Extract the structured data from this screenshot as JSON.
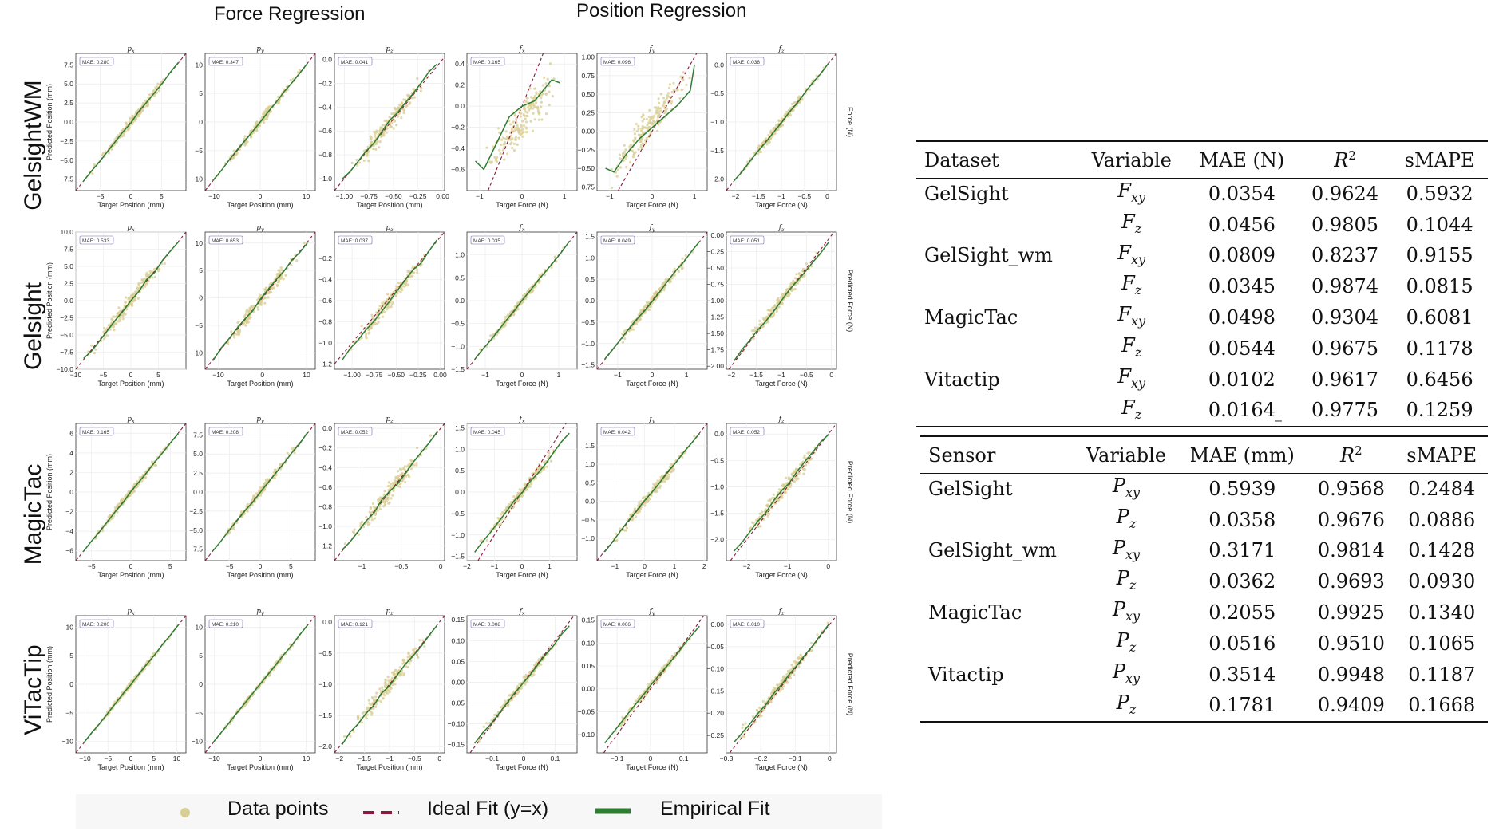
{
  "headers": {
    "force_regression": "Force Regression",
    "position_regression": "Position Regression"
  },
  "row_labels": [
    "GelsightWM",
    "Gelsight",
    "MagicTac",
    "ViTacTip"
  ],
  "legend": {
    "data_points": "Data points",
    "ideal_fit": "Ideal Fit (y=x)",
    "empirical_fit": "Empirical Fit"
  },
  "colors": {
    "points": "#d9cf96",
    "ideal": "#8b1a3c",
    "empirical": "#2e7d32",
    "mae_box": "#6b6bb3"
  },
  "chart_data": [
    {
      "type": "scatter",
      "row": 0,
      "col": 0,
      "title": "p_x",
      "mae": "MAE: 0.280",
      "xlabel": "Target Position (mm)",
      "ylabel": "Predicted Position (mm)",
      "xlim": [
        -9,
        9
      ],
      "ylim": [
        -9,
        9
      ],
      "xticks": [
        -5,
        0,
        5
      ],
      "yticks": [
        -7.5,
        -5.0,
        -2.5,
        0.0,
        2.5,
        5.0,
        7.5
      ],
      "spread": 0.06
    },
    {
      "type": "scatter",
      "row": 0,
      "col": 1,
      "title": "p_y",
      "mae": "MAE: 0.347",
      "xlabel": "Target Position (mm)",
      "ylabel": "",
      "xlim": [
        -12,
        12
      ],
      "ylim": [
        -12,
        12
      ],
      "xticks": [
        -10,
        0,
        10
      ],
      "yticks": [
        -10,
        -5,
        0,
        5,
        10
      ],
      "spread": 0.06
    },
    {
      "type": "scatter",
      "row": 0,
      "col": 2,
      "title": "p_z",
      "mae": "MAE: 0.041",
      "xlabel": "Target Position (mm)",
      "ylabel": "",
      "xlim": [
        -1.1,
        0.02
      ],
      "ylim": [
        -1.1,
        0.05
      ],
      "xticks": [
        -1.0,
        -0.75,
        -0.5,
        -0.25,
        0.0
      ],
      "xtick_labels": [
        "−1.00",
        "−0.75",
        "−0.50",
        "−0.25",
        "0.00"
      ],
      "yticks": [
        -1.0,
        -0.8,
        -0.6,
        -0.4,
        -0.2,
        0.0
      ],
      "spread": 0.12
    },
    {
      "type": "scatter",
      "row": 0,
      "col": 3,
      "title": "f_x",
      "mae": "MAE: 0.165",
      "xlabel": "Target Force (N)",
      "ylabel": "",
      "xlim": [
        -1.3,
        1.3
      ],
      "ylim": [
        -0.8,
        0.5
      ],
      "xticks": [
        -1,
        0,
        1
      ],
      "yticks": [
        -0.6,
        -0.4,
        -0.2,
        0.0,
        0.2,
        0.4
      ],
      "spread": 0.25,
      "fit": [
        [
          -1.1,
          -0.52
        ],
        [
          -0.9,
          -0.6
        ],
        [
          -0.6,
          -0.35
        ],
        [
          -0.3,
          -0.1
        ],
        [
          0,
          0
        ],
        [
          0.3,
          0.05
        ],
        [
          0.5,
          0.15
        ],
        [
          0.7,
          0.25
        ],
        [
          0.9,
          0.22
        ]
      ]
    },
    {
      "type": "scatter",
      "row": 0,
      "col": 4,
      "title": "f_y",
      "mae": "MAE: 0.096",
      "xlabel": "Target Force (N)",
      "ylabel": "",
      "xlim": [
        -1.3,
        1.3
      ],
      "ylim": [
        -0.8,
        1.05
      ],
      "xticks": [
        -1,
        0,
        1
      ],
      "yticks": [
        -0.75,
        -0.5,
        -0.25,
        0.0,
        0.25,
        0.5,
        0.75,
        1.0
      ],
      "spread": 0.2,
      "fit": [
        [
          -1.1,
          -0.5
        ],
        [
          -0.9,
          -0.55
        ],
        [
          -0.6,
          -0.3
        ],
        [
          -0.3,
          -0.1
        ],
        [
          0,
          0.05
        ],
        [
          0.3,
          0.2
        ],
        [
          0.6,
          0.35
        ],
        [
          0.9,
          0.55
        ],
        [
          1.0,
          0.9
        ]
      ]
    },
    {
      "type": "scatter",
      "row": 0,
      "col": 5,
      "title": "f_z",
      "mae": "MAE: 0.038",
      "xlabel": "Target Force (N)",
      "ylabel": "Force (N)",
      "xlim": [
        -2.2,
        0.2
      ],
      "ylim": [
        -2.2,
        0.2
      ],
      "xticks": [
        -2.0,
        -1.5,
        -1.0,
        -0.5,
        0.0
      ],
      "yticks": [
        -2.0,
        -1.5,
        -1.0,
        -0.5,
        0.0
      ],
      "spread": 0.06
    },
    {
      "type": "scatter",
      "row": 1,
      "col": 0,
      "title": "p_x",
      "mae": "MAE: 0.533",
      "xlabel": "Target Position (mm)",
      "ylabel": "Predicted Position (mm)",
      "xlim": [
        -10,
        10
      ],
      "ylim": [
        -10,
        10
      ],
      "xticks": [
        -10,
        -5,
        0,
        5
      ],
      "yticks": [
        -10.0,
        -7.5,
        -5.0,
        -2.5,
        0.0,
        2.5,
        5.0,
        7.5,
        10.0
      ],
      "spread": 0.09
    },
    {
      "type": "scatter",
      "row": 1,
      "col": 1,
      "title": "p_y",
      "mae": "MAE: 0.653",
      "xlabel": "Target Position (mm)",
      "ylabel": "",
      "xlim": [
        -13,
        12
      ],
      "ylim": [
        -13,
        12
      ],
      "xticks": [
        -10,
        0,
        10
      ],
      "yticks": [
        -10,
        -5,
        0,
        5,
        10
      ],
      "spread": 0.09
    },
    {
      "type": "scatter",
      "row": 1,
      "col": 2,
      "title": "p_z",
      "mae": "MAE: 0.037",
      "xlabel": "",
      "ylabel": "",
      "xlim": [
        -1.2,
        0.05
      ],
      "ylim": [
        -1.25,
        0.05
      ],
      "xticks": [
        -1.0,
        -0.75,
        -0.5,
        -0.25,
        0.0
      ],
      "xtick_labels": [
        "−1.00",
        "−0.75",
        "−0.50",
        "−0.25",
        "0.00"
      ],
      "yticks": [
        -1.2,
        -1.0,
        -0.8,
        -0.6,
        -0.4,
        -0.2
      ],
      "spread": 0.1
    },
    {
      "type": "scatter",
      "row": 1,
      "col": 3,
      "title": "f_x",
      "mae": "MAE: 0.035",
      "xlabel": "Target Force (N)",
      "ylabel": "",
      "xlim": [
        -1.5,
        1.5
      ],
      "ylim": [
        -1.5,
        1.5
      ],
      "xticks": [
        -1,
        0,
        1
      ],
      "yticks": [
        -1.5,
        -1.0,
        -0.5,
        0.0,
        0.5,
        1.0
      ],
      "spread": 0.05
    },
    {
      "type": "scatter",
      "row": 1,
      "col": 4,
      "title": "f_y",
      "mae": "MAE: 0.049",
      "xlabel": "Target Force (N)",
      "ylabel": "",
      "xlim": [
        -1.6,
        1.6
      ],
      "ylim": [
        -1.6,
        1.6
      ],
      "xticks": [
        -1,
        0,
        1
      ],
      "yticks": [
        -1.5,
        -1.0,
        -0.5,
        0.0,
        0.5,
        1.0,
        1.5
      ],
      "spread": 0.06
    },
    {
      "type": "scatter",
      "row": 1,
      "col": 5,
      "title": "f_z",
      "mae": "MAE: 0.051",
      "xlabel": "Target Force (N)",
      "ylabel": "Predicted Force (N)",
      "xlim": [
        -2.1,
        0.1
      ],
      "ylim": [
        -2.05,
        0.05
      ],
      "xticks": [
        -2.0,
        -1.5,
        -1.0,
        -0.5,
        0.0
      ],
      "yticks": [
        -2.0,
        -1.75,
        -1.5,
        -1.25,
        -1.0,
        -0.75,
        -0.5,
        -0.25,
        0.0
      ],
      "spread": 0.08
    },
    {
      "type": "scatter",
      "row": 2,
      "col": 0,
      "title": "p_x",
      "mae": "MAE: 0.165",
      "xlabel": "Target Position (mm)",
      "ylabel": "Predicted Position (mm)",
      "xlim": [
        -7,
        7
      ],
      "ylim": [
        -7,
        7
      ],
      "xticks": [
        -5,
        0,
        5
      ],
      "yticks": [
        -6,
        -4,
        -2,
        0,
        2,
        4,
        6
      ],
      "spread": 0.05
    },
    {
      "type": "scatter",
      "row": 2,
      "col": 1,
      "title": "p_y",
      "mae": "MAE: 0.208",
      "xlabel": "Target Position (mm)",
      "ylabel": "",
      "xlim": [
        -9,
        9
      ],
      "ylim": [
        -9,
        9
      ],
      "xticks": [
        -5,
        0,
        5
      ],
      "yticks": [
        -7.5,
        -5.0,
        -2.5,
        0.0,
        2.5,
        5.0,
        7.5
      ],
      "spread": 0.05
    },
    {
      "type": "scatter",
      "row": 2,
      "col": 2,
      "title": "p_z",
      "mae": "MAE: 0.052",
      "xlabel": "",
      "ylabel": "",
      "xlim": [
        -1.35,
        0.05
      ],
      "ylim": [
        -1.35,
        0.05
      ],
      "xticks": [
        -1.0,
        -0.5,
        0.0
      ],
      "yticks": [
        -1.2,
        -1.0,
        -0.8,
        -0.6,
        -0.4,
        -0.2,
        0.0
      ],
      "spread": 0.12
    },
    {
      "type": "scatter",
      "row": 2,
      "col": 3,
      "title": "f_x",
      "mae": "MAE: 0.045",
      "xlabel": "Target Force (N)",
      "ylabel": "",
      "xlim": [
        -2,
        2
      ],
      "ylim": [
        -1.6,
        1.6
      ],
      "xticks": [
        -2,
        -1,
        0,
        1
      ],
      "yticks": [
        -1.5,
        -1.0,
        -0.5,
        0.0,
        0.5,
        1.0,
        1.5
      ],
      "spread": 0.07
    },
    {
      "type": "scatter",
      "row": 2,
      "col": 4,
      "title": "f_y",
      "mae": "MAE: 0.042",
      "xlabel": "Target Force (N)",
      "ylabel": "",
      "xlim": [
        -1.6,
        2.1
      ],
      "ylim": [
        -1.6,
        2.1
      ],
      "xticks": [
        -1,
        0,
        1,
        2
      ],
      "yticks": [
        -1.0,
        -0.5,
        0.0,
        0.5,
        1.0,
        1.5
      ],
      "spread": 0.07
    },
    {
      "type": "scatter",
      "row": 2,
      "col": 5,
      "title": "f_z",
      "mae": "MAE: 0.052",
      "xlabel": "Target Force (N)",
      "ylabel": "Predicted Force (N)",
      "xlim": [
        -2.5,
        0.2
      ],
      "ylim": [
        -2.4,
        0.2
      ],
      "xticks": [
        -2,
        -1,
        0
      ],
      "yticks": [
        -2.0,
        -1.5,
        -1.0,
        -0.5,
        0.0
      ],
      "spread": 0.09
    },
    {
      "type": "scatter",
      "row": 3,
      "col": 0,
      "title": "p_x",
      "mae": "MAE: 0.200",
      "xlabel": "Target Position (mm)",
      "ylabel": "Predicted Position (mm)",
      "xlim": [
        -12,
        12
      ],
      "ylim": [
        -12,
        12
      ],
      "xticks": [
        -10,
        -5,
        0,
        5,
        10
      ],
      "yticks": [
        -10,
        -5,
        0,
        5,
        10
      ],
      "spread": 0.03
    },
    {
      "type": "scatter",
      "row": 3,
      "col": 1,
      "title": "p_y",
      "mae": "MAE: 0.210",
      "xlabel": "Target Position (mm)",
      "ylabel": "",
      "xlim": [
        -12,
        12
      ],
      "ylim": [
        -12,
        12
      ],
      "xticks": [
        -10,
        0,
        10
      ],
      "yticks": [
        -10,
        -5,
        0,
        5,
        10
      ],
      "spread": 0.03
    },
    {
      "type": "scatter",
      "row": 3,
      "col": 2,
      "title": "p_z",
      "mae": "MAE: 0.121",
      "xlabel": "Target Position (mm)",
      "ylabel": "",
      "xlim": [
        -2.1,
        0.1
      ],
      "ylim": [
        -2.1,
        0.1
      ],
      "xticks": [
        -2.0,
        -1.5,
        -1.0,
        -0.5,
        0.0
      ],
      "yticks": [
        -2.0,
        -1.5,
        -1.0,
        -0.5,
        0.0
      ],
      "spread": 0.12
    },
    {
      "type": "scatter",
      "row": 3,
      "col": 3,
      "title": "f_x",
      "mae": "MAE: 0.008",
      "xlabel": "Target Force (N)",
      "ylabel": "",
      "xlim": [
        -0.18,
        0.17
      ],
      "ylim": [
        -0.17,
        0.16
      ],
      "xticks": [
        -0.1,
        0.0,
        0.1
      ],
      "yticks": [
        -0.15,
        -0.1,
        -0.05,
        0.0,
        0.05,
        0.1,
        0.15
      ],
      "spread": 0.06
    },
    {
      "type": "scatter",
      "row": 3,
      "col": 4,
      "title": "f_y",
      "mae": "MAE: 0.006",
      "xlabel": "Target Force (N)",
      "ylabel": "",
      "xlim": [
        -0.16,
        0.17
      ],
      "ylim": [
        -0.14,
        0.16
      ],
      "xticks": [
        -0.1,
        0.0,
        0.1
      ],
      "yticks": [
        -0.1,
        -0.05,
        0.0,
        0.05,
        0.1,
        0.15
      ],
      "spread": 0.05
    },
    {
      "type": "scatter",
      "row": 3,
      "col": 5,
      "title": "f_z",
      "mae": "MAE: 0.010",
      "xlabel": "Target Force (N)",
      "ylabel": "Predicted Force (N)",
      "xlim": [
        -0.3,
        0.02
      ],
      "ylim": [
        -0.29,
        0.02
      ],
      "xticks": [
        -0.3,
        -0.2,
        -0.1,
        0.0
      ],
      "yticks": [
        -0.25,
        -0.2,
        -0.15,
        -0.1,
        -0.05,
        0.0
      ],
      "spread": 0.08
    }
  ],
  "tables": {
    "force": {
      "columns": [
        "Dataset",
        "Variable",
        "MAE (N)",
        "R",
        "sMAPE"
      ],
      "rows": [
        {
          "label": "GelSight",
          "var": "F",
          "sub": "xy",
          "mae": "0.0354",
          "r2": "0.9624",
          "smape": "0.5932"
        },
        {
          "label": "",
          "var": "F",
          "sub": "z",
          "mae": "0.0456",
          "r2": "0.9805",
          "smape": "0.1044"
        },
        {
          "label": "GelSight_wm",
          "var": "F",
          "sub": "xy",
          "mae": "0.0809",
          "r2": "0.8237",
          "smape": "0.9155"
        },
        {
          "label": "",
          "var": "F",
          "sub": "z",
          "mae": "0.0345",
          "r2": "0.9874",
          "smape": "0.0815"
        },
        {
          "label": "MagicTac",
          "var": "F",
          "sub": "xy",
          "mae": "0.0498",
          "r2": "0.9304",
          "smape": "0.6081"
        },
        {
          "label": "",
          "var": "F",
          "sub": "z",
          "mae": "0.0544",
          "r2": "0.9675",
          "smape": "0.1178"
        },
        {
          "label": "Vitactip",
          "var": "F",
          "sub": "xy",
          "mae": "0.0102",
          "r2": "0.9617",
          "smape": "0.6456"
        },
        {
          "label": "",
          "var": "F",
          "sub": "z",
          "mae": "0.0164",
          "r2": "0.9775",
          "smape": "0.1259"
        }
      ]
    },
    "position": {
      "columns": [
        "Sensor",
        "Variable",
        "MAE (mm)",
        "R",
        "sMAPE"
      ],
      "rows": [
        {
          "label": "GelSight",
          "var": "P",
          "sub": "xy",
          "mae": "0.5939",
          "r2": "0.9568",
          "smape": "0.2484"
        },
        {
          "label": "",
          "var": "P",
          "sub": "z",
          "mae": "0.0358",
          "r2": "0.9676",
          "smape": "0.0886"
        },
        {
          "label": "GelSight_wm",
          "var": "P",
          "sub": "xy",
          "mae": "0.3171",
          "r2": "0.9814",
          "smape": "0.1428"
        },
        {
          "label": "",
          "var": "P",
          "sub": "z",
          "mae": "0.0362",
          "r2": "0.9693",
          "smape": "0.0930"
        },
        {
          "label": "MagicTac",
          "var": "P",
          "sub": "xy",
          "mae": "0.2055",
          "r2": "0.9925",
          "smape": "0.1340"
        },
        {
          "label": "",
          "var": "P",
          "sub": "z",
          "mae": "0.0516",
          "r2": "0.9510",
          "smape": "0.1065"
        },
        {
          "label": "Vitactip",
          "var": "P",
          "sub": "xy",
          "mae": "0.3514",
          "r2": "0.9948",
          "smape": "0.1187"
        },
        {
          "label": "",
          "var": "P",
          "sub": "z",
          "mae": "0.1781",
          "r2": "0.9409",
          "smape": "0.1668"
        }
      ]
    }
  }
}
